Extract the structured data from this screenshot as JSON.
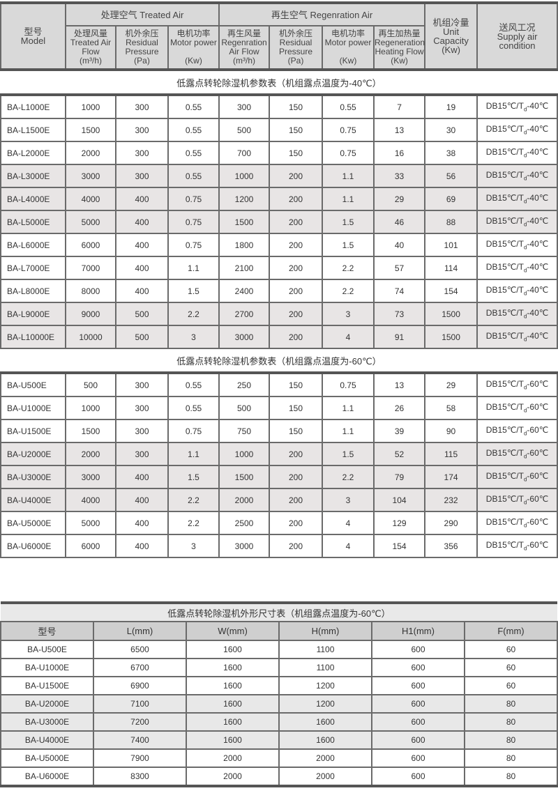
{
  "table1": {
    "header": {
      "model": [
        "型号",
        "Model"
      ],
      "treated_air": "处理空气 Treated Air",
      "regen_air": "再生空气  Regenration Air",
      "unit_capacity": [
        "机组冷量",
        "Unit",
        "Capacity",
        "(Kw)"
      ],
      "supply": [
        "送风工况",
        "Supply air",
        "condition"
      ],
      "sub": [
        [
          "处理风量",
          "Treated Air",
          "Flow",
          "(m³/h)"
        ],
        [
          "机外余压",
          "Residual",
          "Pressure",
          "(Pa)"
        ],
        [
          "电机功率",
          "Motor power",
          "",
          "(Kw)"
        ],
        [
          "再生风量",
          "Regenration",
          "Air Flow",
          "(m³/h)"
        ],
        [
          "机外余压",
          "Residual",
          "Pressure",
          "(Pa)"
        ],
        [
          "电机功率",
          "Motor power",
          "",
          "(Kw)"
        ],
        [
          "再生加热量",
          "Regeneration",
          "Heating Flow",
          "(Kw)"
        ]
      ]
    },
    "sections": [
      {
        "title": "低露点转轮除湿机参数表（机组露点温度为-40℃）",
        "supply": {
          "pre": "DB15℃/T",
          "sub": "d",
          "post": "-40℃"
        },
        "shaded": [
          3,
          4,
          5,
          9,
          10
        ],
        "rows": [
          [
            "BA-L1000E",
            "1000",
            "300",
            "0.55",
            "300",
            "150",
            "0.55",
            "7",
            "19"
          ],
          [
            "BA-L1500E",
            "1500",
            "300",
            "0.55",
            "500",
            "150",
            "0.75",
            "13",
            "30"
          ],
          [
            "BA-L2000E",
            "2000",
            "300",
            "0.55",
            "700",
            "150",
            "0.75",
            "16",
            "38"
          ],
          [
            "BA-L3000E",
            "3000",
            "300",
            "0.55",
            "1000",
            "200",
            "1.1",
            "33",
            "56"
          ],
          [
            "BA-L4000E",
            "4000",
            "400",
            "0.75",
            "1200",
            "200",
            "1.1",
            "29",
            "69"
          ],
          [
            "BA-L5000E",
            "5000",
            "400",
            "0.75",
            "1500",
            "200",
            "1.5",
            "46",
            "88"
          ],
          [
            "BA-L6000E",
            "6000",
            "400",
            "0.75",
            "1800",
            "200",
            "1.5",
            "40",
            "101"
          ],
          [
            "BA-L7000E",
            "7000",
            "400",
            "1.1",
            "2100",
            "200",
            "2.2",
            "57",
            "114"
          ],
          [
            "BA-L8000E",
            "8000",
            "400",
            "1.5",
            "2400",
            "200",
            "2.2",
            "74",
            "154"
          ],
          [
            "BA-L9000E",
            "9000",
            "500",
            "2.2",
            "2700",
            "200",
            "3",
            "73",
            "1500"
          ],
          [
            "BA-L10000E",
            "10000",
            "500",
            "3",
            "3000",
            "200",
            "4",
            "91",
            "1500"
          ]
        ]
      },
      {
        "title": "低露点转轮除湿机参数表（机组露点温度为-60℃）",
        "supply": {
          "pre": "DB15℃/T",
          "sub": "d",
          "post": "-60℃"
        },
        "shaded": [
          3,
          4,
          5
        ],
        "rows": [
          [
            "BA-U500E",
            "500",
            "300",
            "0.55",
            "250",
            "150",
            "0.75",
            "13",
            "29"
          ],
          [
            "BA-U1000E",
            "1000",
            "300",
            "0.55",
            "500",
            "150",
            "1.1",
            "26",
            "58"
          ],
          [
            "BA-U1500E",
            "1500",
            "300",
            "0.75",
            "750",
            "150",
            "1.1",
            "39",
            "90"
          ],
          [
            "BA-U2000E",
            "2000",
            "300",
            "1.1",
            "1000",
            "200",
            "1.5",
            "52",
            "115"
          ],
          [
            "BA-U3000E",
            "3000",
            "400",
            "1.5",
            "1500",
            "200",
            "2.2",
            "79",
            "174"
          ],
          [
            "BA-U4000E",
            "4000",
            "400",
            "2.2",
            "2000",
            "200",
            "3",
            "104",
            "232"
          ],
          [
            "BA-U5000E",
            "5000",
            "400",
            "2.2",
            "2500",
            "200",
            "4",
            "129",
            "290"
          ],
          [
            "BA-U6000E",
            "6000",
            "400",
            "3",
            "3000",
            "200",
            "4",
            "154",
            "356"
          ]
        ]
      }
    ]
  },
  "table2": {
    "title": "低露点转轮除湿机外形尺寸表（机组露点温度为-60℃）",
    "headers": [
      "型号",
      "L(mm)",
      "W(mm)",
      "H(mm)",
      "H1(mm)",
      "F(mm)"
    ],
    "shaded": [
      3,
      4,
      5
    ],
    "rows": [
      [
        "BA-U500E",
        "6500",
        "1600",
        "1100",
        "600",
        "60"
      ],
      [
        "BA-U1000E",
        "6700",
        "1600",
        "1100",
        "600",
        "60"
      ],
      [
        "BA-U1500E",
        "6900",
        "1600",
        "1200",
        "600",
        "60"
      ],
      [
        "BA-U2000E",
        "7100",
        "1600",
        "1200",
        "600",
        "80"
      ],
      [
        "BA-U3000E",
        "7200",
        "1600",
        "1600",
        "600",
        "80"
      ],
      [
        "BA-U4000E",
        "7400",
        "1600",
        "1600",
        "600",
        "80"
      ],
      [
        "BA-U5000E",
        "7900",
        "2000",
        "2000",
        "600",
        "80"
      ],
      [
        "BA-U6000E",
        "8300",
        "2000",
        "2000",
        "600",
        "80"
      ]
    ]
  }
}
